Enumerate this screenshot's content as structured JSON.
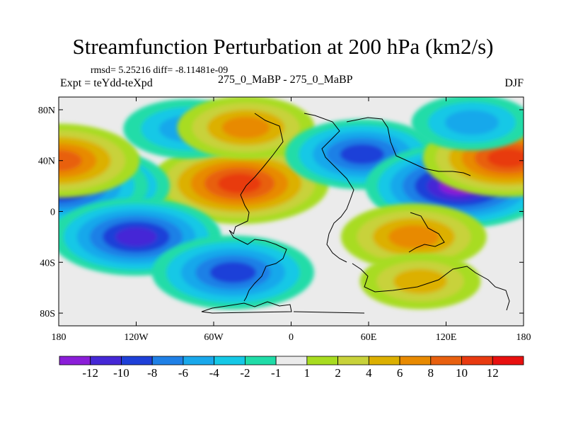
{
  "chart_data": {
    "type": "heatmap",
    "title": "Streamfunction Perturbation at 200 hPa (km2/s)",
    "stats_line": "rmsd= 5.25216 diff= -8.11481e-09",
    "experiment": "Expt = teYdd-teXpd",
    "case_id": "275_0_MaBP - 275_0_MaBP",
    "season": "DJF",
    "xlim": [
      -180,
      180
    ],
    "ylim": [
      -90,
      90
    ],
    "x_ticks": [
      {
        "value": -180,
        "label": "180"
      },
      {
        "value": -120,
        "label": "120W"
      },
      {
        "value": -60,
        "label": "60W"
      },
      {
        "value": 0,
        "label": "0"
      },
      {
        "value": 60,
        "label": "60E"
      },
      {
        "value": 120,
        "label": "120E"
      },
      {
        "value": 180,
        "label": "180"
      }
    ],
    "y_ticks": [
      {
        "value": 80,
        "label": "80N"
      },
      {
        "value": 40,
        "label": "40N"
      },
      {
        "value": 0,
        "label": "0"
      },
      {
        "value": -40,
        "label": "40S"
      },
      {
        "value": -80,
        "label": "80S"
      }
    ],
    "colorbar": {
      "labels": [
        "-12",
        "-10",
        "-8",
        "-6",
        "-4",
        "-2",
        "-1",
        "1",
        "2",
        "4",
        "6",
        "8",
        "10",
        "12"
      ],
      "colors": [
        "#8b1ed8",
        "#4528d6",
        "#1e40d8",
        "#1f80e6",
        "#19a8eb",
        "#15c8e6",
        "#20dca8",
        "#ebebeb",
        "#a8dc20",
        "#c8d23a",
        "#dcb000",
        "#e88a00",
        "#e8600f",
        "#e83a10",
        "#e8100f"
      ]
    },
    "field_features": [
      {
        "lon": -40,
        "lat": 22,
        "value": 11
      },
      {
        "lon": -160,
        "lat": 20,
        "value": -10
      },
      {
        "lon": -180,
        "lat": 20,
        "value": -11
      },
      {
        "lon": -180,
        "lat": 40,
        "value": 9
      },
      {
        "lon": -120,
        "lat": -20,
        "value": -10
      },
      {
        "lon": -45,
        "lat": -48,
        "value": -9
      },
      {
        "lon": -80,
        "lat": 65,
        "value": -5
      },
      {
        "lon": -35,
        "lat": 66,
        "value": 6
      },
      {
        "lon": 55,
        "lat": 45,
        "value": -8
      },
      {
        "lon": 130,
        "lat": 20,
        "value": -12
      },
      {
        "lon": 168,
        "lat": 42,
        "value": 10
      },
      {
        "lon": 95,
        "lat": -20,
        "value": 7
      },
      {
        "lon": 140,
        "lat": 70,
        "value": -4
      },
      {
        "lon": 100,
        "lat": -55,
        "value": 4
      }
    ]
  }
}
